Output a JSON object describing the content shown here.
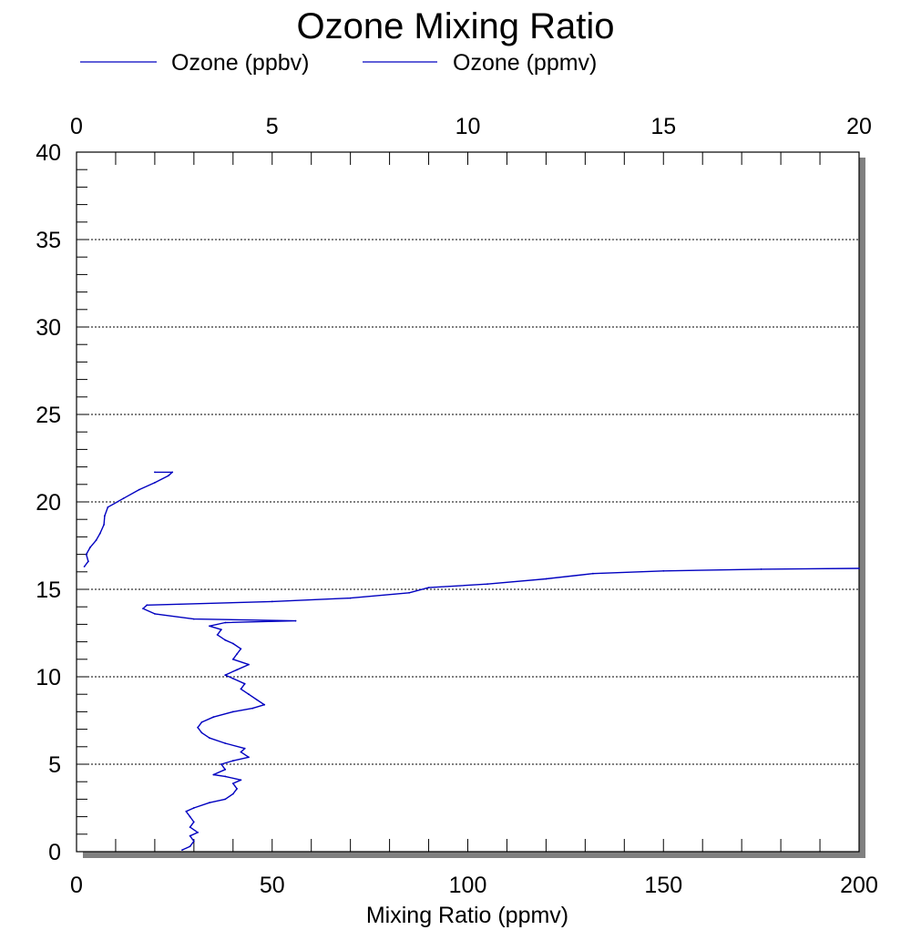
{
  "chart_data": {
    "type": "line",
    "title": "Ozone Mixing Ratio",
    "xlabel": "Mixing Ratio (ppmv)",
    "ylabel": "",
    "x_bottom": {
      "lim": [
        0,
        200
      ],
      "ticks": [
        "0",
        "50",
        "100",
        "150",
        "200"
      ]
    },
    "x_top": {
      "lim": [
        0,
        20
      ],
      "ticks": [
        "0",
        "5",
        "10",
        "15",
        "20"
      ]
    },
    "y": {
      "lim": [
        0,
        40
      ],
      "ticks": [
        "0",
        "5",
        "10",
        "15",
        "20",
        "25",
        "30",
        "35",
        "40"
      ]
    },
    "grid": "horizontal dotted",
    "legend_position": "top",
    "series": [
      {
        "name": "Ozone (ppbv)",
        "axis": "bottom",
        "color": "#0000c0",
        "points": [
          [
            27,
            0.1
          ],
          [
            29,
            0.3
          ],
          [
            30,
            0.6
          ],
          [
            29,
            0.9
          ],
          [
            31,
            1.1
          ],
          [
            29,
            1.4
          ],
          [
            30,
            1.7
          ],
          [
            29,
            2.0
          ],
          [
            28,
            2.3
          ],
          [
            30,
            2.5
          ],
          [
            34,
            2.8
          ],
          [
            38,
            3.0
          ],
          [
            40,
            3.3
          ],
          [
            41,
            3.6
          ],
          [
            40,
            3.9
          ],
          [
            42,
            4.1
          ],
          [
            38,
            4.3
          ],
          [
            35,
            4.4
          ],
          [
            38,
            4.7
          ],
          [
            37,
            5.0
          ],
          [
            40,
            5.2
          ],
          [
            44,
            5.4
          ],
          [
            42,
            5.7
          ],
          [
            43,
            5.9
          ],
          [
            38,
            6.2
          ],
          [
            34,
            6.5
          ],
          [
            32,
            6.8
          ],
          [
            31,
            7.1
          ],
          [
            32,
            7.4
          ],
          [
            35,
            7.7
          ],
          [
            40,
            8.0
          ],
          [
            45,
            8.2
          ],
          [
            48,
            8.4
          ],
          [
            46,
            8.7
          ],
          [
            44,
            9.0
          ],
          [
            42,
            9.3
          ],
          [
            43,
            9.6
          ],
          [
            40,
            9.9
          ],
          [
            38,
            10.1
          ],
          [
            41,
            10.4
          ],
          [
            44,
            10.7
          ],
          [
            40,
            11.0
          ],
          [
            41,
            11.3
          ],
          [
            42,
            11.6
          ],
          [
            40,
            11.9
          ],
          [
            38,
            12.1
          ],
          [
            36,
            12.4
          ],
          [
            37,
            12.7
          ],
          [
            34,
            12.9
          ],
          [
            38,
            13.1
          ],
          [
            56,
            13.2
          ],
          [
            30,
            13.3
          ],
          [
            20,
            13.6
          ],
          [
            17,
            13.9
          ],
          [
            18,
            14.1
          ],
          [
            50,
            14.3
          ],
          [
            70,
            14.5
          ],
          [
            85,
            14.8
          ],
          [
            90,
            15.1
          ],
          [
            105,
            15.3
          ],
          [
            120,
            15.6
          ],
          [
            132,
            15.9
          ],
          [
            150,
            16.05
          ],
          [
            175,
            16.15
          ],
          [
            200,
            16.2
          ]
        ]
      },
      {
        "name": "Ozone (ppmv)",
        "axis": "top",
        "color": "#0000c0",
        "points": [
          [
            0.2,
            16.3
          ],
          [
            0.3,
            16.6
          ],
          [
            0.25,
            17.0
          ],
          [
            0.35,
            17.4
          ],
          [
            0.5,
            17.8
          ],
          [
            0.6,
            18.2
          ],
          [
            0.7,
            18.7
          ],
          [
            0.72,
            19.2
          ],
          [
            0.8,
            19.7
          ],
          [
            1.2,
            20.2
          ],
          [
            1.6,
            20.7
          ],
          [
            2.0,
            21.1
          ],
          [
            2.35,
            21.5
          ],
          [
            2.45,
            21.7
          ],
          [
            2.0,
            21.7
          ]
        ]
      }
    ]
  }
}
